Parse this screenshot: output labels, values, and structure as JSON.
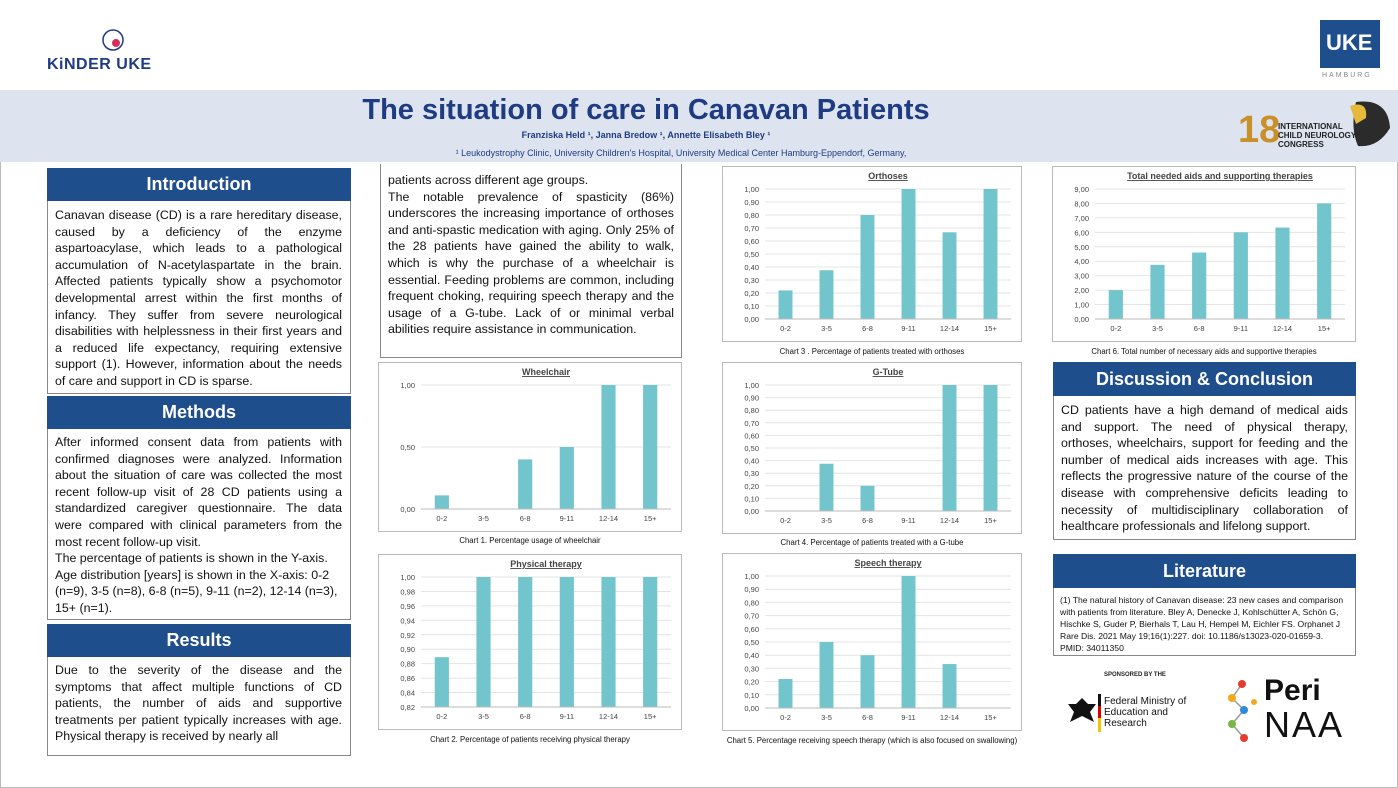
{
  "header": {
    "logo_left": "KiNDER UKE",
    "logo_right": "UKE",
    "logo_right_sub": "HAMBURG",
    "title": "The situation of care in Canavan Patients",
    "authors": "Franziska Held ¹, Janna Bredow ¹, Annette Elisabeth Bley ¹",
    "affiliation": "¹ Leukodystrophy Clinic, University Children's Hospital, University Medical Center Hamburg-Eppendorf, Germany,",
    "congress_logo": "INTERNATIONAL CHILD NEUROLOGY CONGRESS"
  },
  "sections": {
    "introduction": {
      "heading": "Introduction",
      "text": "Canavan disease (CD) is a rare hereditary disease, caused by a deficiency of the enzyme aspartoacylase, which leads to a pathological accumulation of N-acetylaspartate in the brain. Affected patients typically show a psychomotor developmental arrest within the first months of infancy. They suffer from severe neurological disabilities with helplessness in their first years and a reduced life expectancy, requiring extensive support (1). However, information about the needs of care and support in CD is sparse."
    },
    "methods": {
      "heading": "Methods",
      "text": "After informed consent data from patients with confirmed diagnoses were analyzed. Information about the situation of care was collected the most recent follow-up visit of 28 CD patients using a standardized caregiver questionnaire. The data were compared with clinical parameters from the most recent follow-up visit.",
      "text2": "The percentage of patients is shown in the Y-axis. Age distribution [years] is shown in the X-axis: 0-2 (n=9), 3-5 (n=8), 6-8 (n=5), 9-11 (n=2), 12-14 (n=3), 15+ (n=1)."
    },
    "results": {
      "heading": "Results",
      "text": "Due to the severity of the disease and the symptoms that affect multiple functions of CD patients, the number of aids and supportive treatments per patient typically increases with age. Physical therapy is received by nearly all",
      "text_cont": "patients across different age groups.",
      "text_cont2": "The notable prevalence of spasticity (86%) underscores the increasing importance of orthoses and anti-spastic medication with aging. Only 25% of the 28 patients have gained the ability to walk, which is why the purchase of a wheelchair is essential. Feeding problems are common, including frequent choking, requiring speech therapy and the usage of a G-tube. Lack of or minimal verbal abilities require assistance in communication."
    },
    "discussion": {
      "heading": "Discussion & Conclusion",
      "text": "CD patients have a high demand of medical aids and support. The need of physical therapy, orthoses, wheelchairs, support for feeding and the number of medical aids increases with age. This reflects the progressive nature of the course of the disease with comprehensive deficits leading to necessity of multidisciplinary collaboration of healthcare professionals and lifelong support."
    },
    "literature": {
      "heading": "Literature",
      "text": "(1) The natural history of Canavan disease: 23 new cases and comparison with patients from literature. Bley A, Denecke J, Kohlschütter A, Schön G, Hischke S, Guder P, Bierhals T, Lau H, Hempel M, Eichler FS. Orphanet J Rare Dis. 2021 May 19;16(1):227. doi: 10.1186/s13023-020-01659-3. PMID: 34011350"
    }
  },
  "sponsor": {
    "label": "SPONSORED BY THE",
    "ministry": "Federal Ministry of Education and Research",
    "peri_top": "Peri",
    "peri_bottom": "NAA"
  },
  "chart_data": [
    {
      "id": "wheelchair",
      "type": "bar",
      "title": "Wheelchair",
      "caption": "Chart 1. Percentage usage of wheelchair",
      "categories": [
        "0-2",
        "3-5",
        "6-8",
        "9-11",
        "12-14",
        "15+"
      ],
      "values": [
        0.11,
        0,
        0.4,
        0.5,
        1,
        1
      ],
      "ylim": [
        0,
        1
      ],
      "yticks": [
        "0,00",
        "0,50",
        "1,00"
      ]
    },
    {
      "id": "physical",
      "type": "bar",
      "title": "Physical therapy",
      "caption": "Chart 2. Percentage of patients receiving physical therapy",
      "categories": [
        "0-2",
        "3-5",
        "6-8",
        "9-11",
        "12-14",
        "15+"
      ],
      "values": [
        0.889,
        1,
        1,
        1,
        1,
        1
      ],
      "ylim": [
        0.82,
        1
      ],
      "yticks": [
        "0,82",
        "0,84",
        "0,86",
        "0,88",
        "0,90",
        "0,92",
        "0,94",
        "0,96",
        "0,98",
        "1,00"
      ]
    },
    {
      "id": "orthoses",
      "type": "bar",
      "title": "Orthoses",
      "caption": "Chart 3 . Percentage of patients treated with orthoses",
      "categories": [
        "0-2",
        "3-5",
        "6-8",
        "9-11",
        "12-14",
        "15+"
      ],
      "values": [
        0.22,
        0.375,
        0.8,
        1,
        0.667,
        1
      ],
      "ylim": [
        0,
        1
      ],
      "yticks": [
        "0,00",
        "0,10",
        "0,20",
        "0,30",
        "0,40",
        "0,50",
        "0,60",
        "0,70",
        "0,80",
        "0,90",
        "1,00"
      ]
    },
    {
      "id": "gtube",
      "type": "bar",
      "title": "G-Tube",
      "caption": "Chart 4. Percentage of patients treated with a G-tube",
      "categories": [
        "0-2",
        "3-5",
        "6-8",
        "9-11",
        "12-14",
        "15+"
      ],
      "values": [
        0,
        0.375,
        0.2,
        0,
        1,
        1
      ],
      "ylim": [
        0,
        1
      ],
      "yticks": [
        "0,00",
        "0,10",
        "0,20",
        "0,30",
        "0,40",
        "0,50",
        "0,60",
        "0,70",
        "0,80",
        "0,90",
        "1,00"
      ]
    },
    {
      "id": "speech",
      "type": "bar",
      "title": "Speech therapy",
      "caption": "Chart 5. Percentage receiving speech therapy  (which is also focused on swallowing)",
      "categories": [
        "0-2",
        "3-5",
        "6-8",
        "9-11",
        "12-14",
        "15+"
      ],
      "values": [
        0.22,
        0.5,
        0.4,
        1,
        0.333,
        0
      ],
      "ylim": [
        0,
        1
      ],
      "yticks": [
        "0,00",
        "0,10",
        "0,20",
        "0,30",
        "0,40",
        "0,50",
        "0,60",
        "0,70",
        "0,80",
        "0,90",
        "1,00"
      ]
    },
    {
      "id": "total",
      "type": "bar",
      "title": "Total needed aids and supporting therapies",
      "caption": "Chart 6. Total number of  necessary aids and supportive therapies",
      "categories": [
        "0-2",
        "3-5",
        "6-8",
        "9-11",
        "12-14",
        "15+"
      ],
      "values": [
        2,
        3.75,
        4.6,
        6,
        6.33,
        8
      ],
      "ylim": [
        0,
        9
      ],
      "yticks": [
        "0,00",
        "1,00",
        "2,00",
        "3,00",
        "4,00",
        "5,00",
        "6,00",
        "7,00",
        "8,00",
        "9,00"
      ]
    }
  ],
  "colors": {
    "bar": "#72c5cc",
    "header_blue": "#1f4e8c",
    "title_blue": "#1f3b82"
  }
}
